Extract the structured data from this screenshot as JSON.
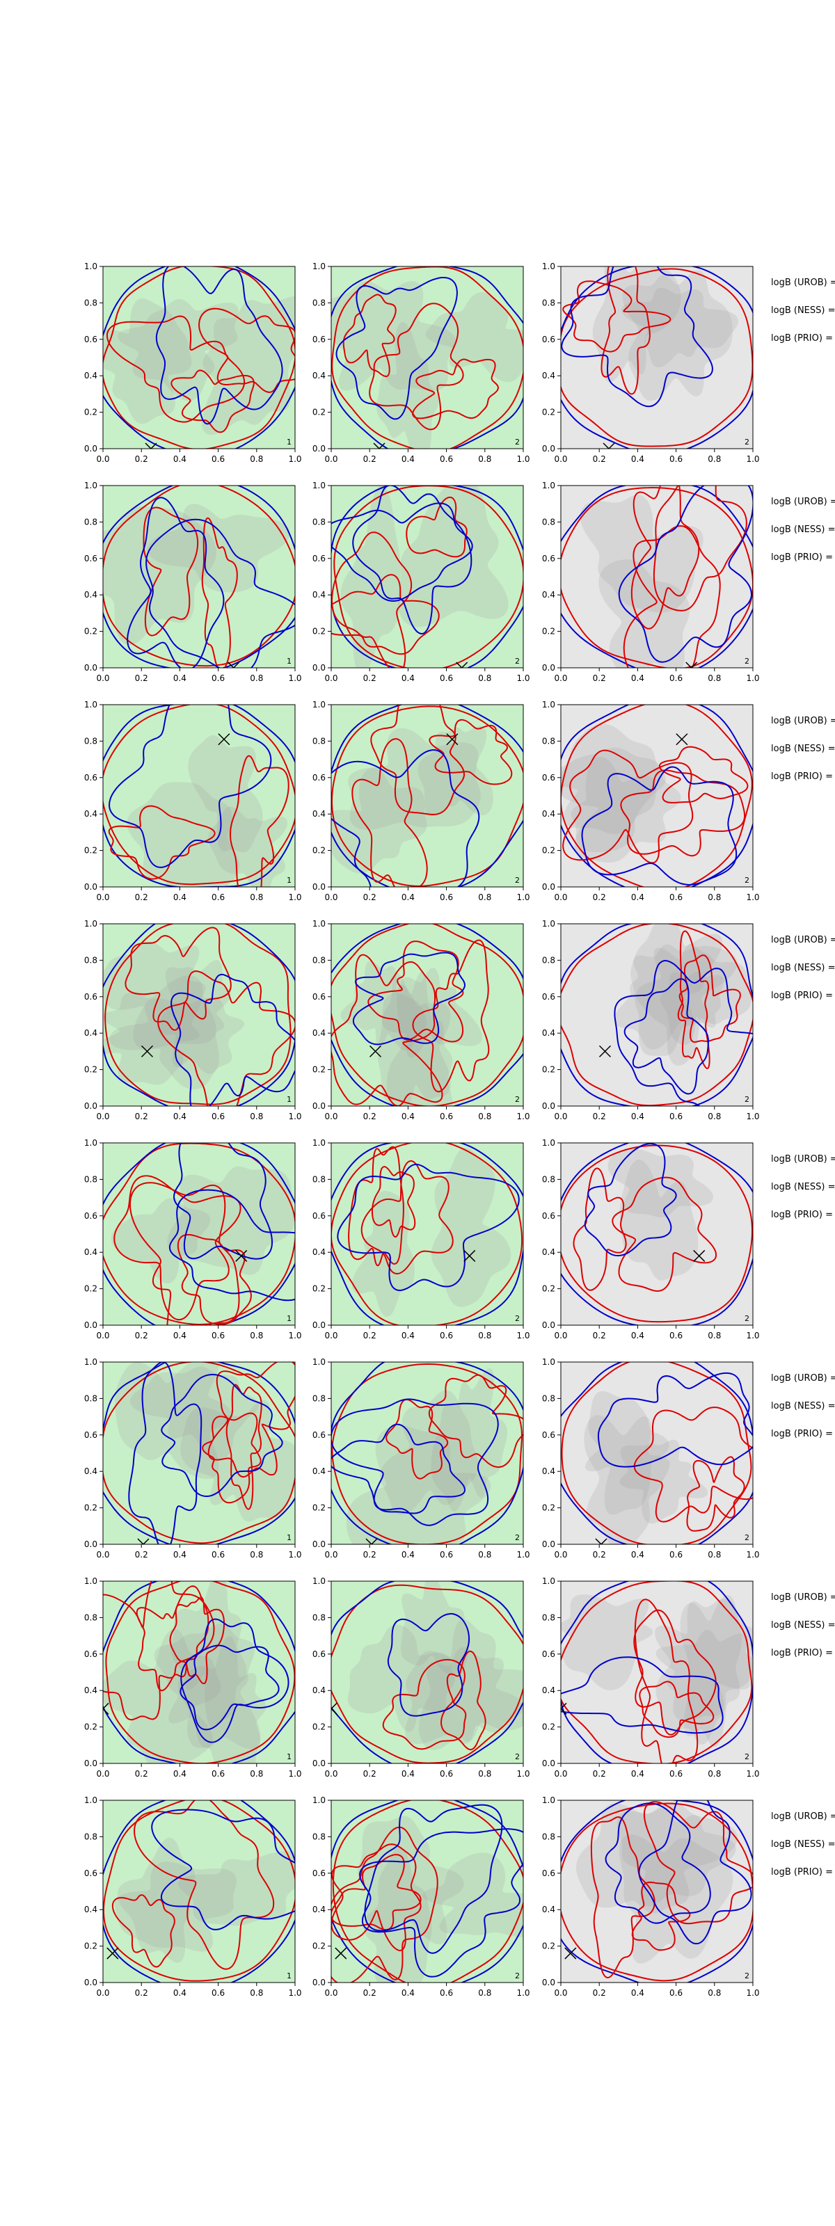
{
  "colors": {
    "green_fill": "#c8f0c8",
    "grey_fill": "#e6e6e6",
    "shade": "#a0a0a0",
    "red": "#dd0000",
    "blue": "#0000cc",
    "axis": "#000000"
  },
  "chart_data": {
    "type": "contour",
    "grid": {
      "rows": 8,
      "cols": 3
    },
    "axis": {
      "xlim": [
        0,
        1
      ],
      "ylim": [
        0,
        1
      ]
    },
    "xticks": [
      "0.0",
      "0.2",
      "0.4",
      "0.6",
      "0.8",
      "1.0"
    ],
    "yticks": [
      "0.0",
      "0.2",
      "0.4",
      "0.6",
      "0.8",
      "1.0"
    ],
    "row_labels": [
      "logB (UROB) =",
      "logB (NESS) =",
      "logB (PRIO) ="
    ],
    "panel_backgrounds": [
      "green",
      "green",
      "grey"
    ],
    "panel_numbers": [
      "1",
      "2",
      "2"
    ],
    "markers": [
      {
        "x": 0.25,
        "y": 0.0
      },
      {
        "x": 0.68,
        "y": 0.0
      },
      {
        "x": 0.63,
        "y": 0.81
      },
      {
        "x": 0.23,
        "y": 0.3
      },
      {
        "x": 0.72,
        "y": 0.38
      },
      {
        "x": 0.21,
        "y": 0.0
      },
      {
        "x": 0.0,
        "y": 0.3
      },
      {
        "x": 0.05,
        "y": 0.16
      }
    ]
  }
}
